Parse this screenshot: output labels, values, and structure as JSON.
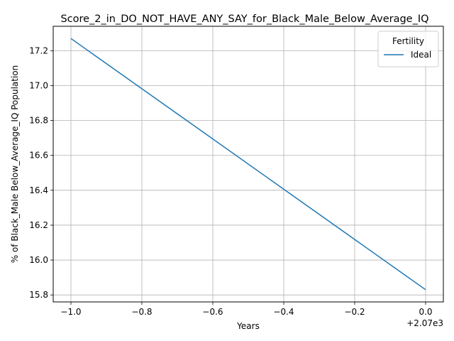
{
  "chart_data": {
    "type": "line",
    "title": "Score_2_in_DO_NOT_HAVE_ANY_SAY_for_Black_Male_Below_Average_IQ",
    "xlabel": "Years",
    "ylabel": "% of Black_Male Below_Average_IQ Population",
    "x_offset_label": "+2.07e3",
    "xlim": [
      -1.05,
      0.05
    ],
    "ylim": [
      15.76,
      17.34
    ],
    "x_ticks": [
      -1.0,
      -0.8,
      -0.6,
      -0.4,
      -0.2,
      0.0
    ],
    "x_tick_labels": [
      "−1.0",
      "−0.8",
      "−0.6",
      "−0.4",
      "−0.2",
      "0.0"
    ],
    "y_ticks": [
      15.8,
      16.0,
      16.2,
      16.4,
      16.6,
      16.8,
      17.0,
      17.2
    ],
    "y_tick_labels": [
      "15.8",
      "16.0",
      "16.2",
      "16.4",
      "16.6",
      "16.8",
      "17.0",
      "17.2"
    ],
    "grid": true,
    "legend": {
      "title": "Fertility",
      "placement": "top-right"
    },
    "series": [
      {
        "name": "Ideal",
        "color": "#1f77b4",
        "x": [
          -1.0,
          0.0
        ],
        "y": [
          17.27,
          15.83
        ]
      }
    ]
  }
}
